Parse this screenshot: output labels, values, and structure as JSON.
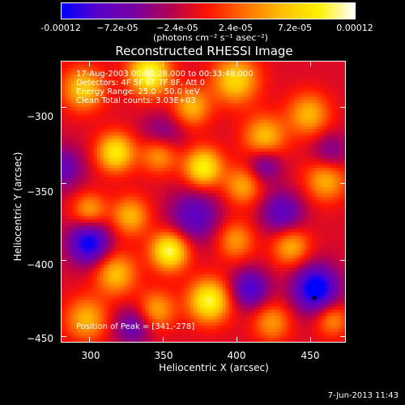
{
  "colorbar": {
    "ticks": [
      "-0.00012",
      "−7.2e-05",
      "−2.4e-05",
      "2.4e-05",
      "7.2e-05",
      "0.00012"
    ],
    "units": "(photons cm⁻² s⁻¹ asec⁻²)"
  },
  "title": "Reconstructed RHESSI Image",
  "annotations": {
    "time": "17-Aug-2003 00:00:28.000 to 00:33:48.000",
    "detectors": "Detectors: 4F 5F 6F 7F 8F, Att 0",
    "energy": "Energy Range: 25.0 - 50.0 keV",
    "clean": "Clean    Total counts: 3.03E+03",
    "peak": "Position of Peak = [341,-278]"
  },
  "footer": {
    "date": "7-Jun-2013 11:43"
  },
  "chart_data": {
    "type": "heatmap",
    "title": "Reconstructed RHESSI Image",
    "xlabel": "Heliocentric X (arcsec)",
    "ylabel": "Heliocentric Y (arcsec)",
    "xlim": [
      281,
      475
    ],
    "ylim": [
      -455,
      -270
    ],
    "x_ticks": [
      300,
      350,
      400,
      450
    ],
    "y_ticks": [
      -300,
      -350,
      -400,
      -450
    ],
    "x_tick_labels": [
      "300",
      "350",
      "400",
      "450"
    ],
    "y_tick_labels": [
      "−300",
      "−350",
      "−400",
      "−450"
    ],
    "colorbar_range": [
      -0.00012,
      0.00012
    ],
    "colormap": [
      "#0000ff",
      "#5a00c8",
      "#7800a0",
      "#b40050",
      "#ff1400",
      "#ff6e00",
      "#ffbe00",
      "#fff000",
      "#ffffff"
    ],
    "peak_position": [
      341,
      -278
    ],
    "marker": [
      454,
      -426
    ],
    "blobs": [
      {
        "x": 341,
        "y": -278,
        "v": 1.0,
        "r": 10
      },
      {
        "x": 296,
        "y": -288,
        "v": 0.7,
        "r": 10
      },
      {
        "x": 400,
        "y": -282,
        "v": 0.75,
        "r": 11
      },
      {
        "x": 370,
        "y": -300,
        "v": 0.6,
        "r": 9
      },
      {
        "x": 318,
        "y": -330,
        "v": 0.85,
        "r": 9
      },
      {
        "x": 348,
        "y": -330,
        "v": 0.7,
        "r": 9
      },
      {
        "x": 420,
        "y": -320,
        "v": 0.65,
        "r": 10
      },
      {
        "x": 450,
        "y": -305,
        "v": 0.6,
        "r": 10
      },
      {
        "x": 378,
        "y": -340,
        "v": 0.9,
        "r": 9
      },
      {
        "x": 405,
        "y": -352,
        "v": 0.55,
        "r": 9
      },
      {
        "x": 462,
        "y": -348,
        "v": 0.6,
        "r": 10
      },
      {
        "x": 328,
        "y": -372,
        "v": 0.6,
        "r": 9
      },
      {
        "x": 300,
        "y": -368,
        "v": 0.55,
        "r": 8
      },
      {
        "x": 355,
        "y": -395,
        "v": 1.0,
        "r": 9
      },
      {
        "x": 318,
        "y": -410,
        "v": 0.65,
        "r": 10
      },
      {
        "x": 400,
        "y": -388,
        "v": 0.5,
        "r": 9
      },
      {
        "x": 438,
        "y": -392,
        "v": 0.6,
        "r": 9
      },
      {
        "x": 382,
        "y": -428,
        "v": 0.95,
        "r": 10
      },
      {
        "x": 346,
        "y": -434,
        "v": 0.55,
        "r": 9
      },
      {
        "x": 298,
        "y": -440,
        "v": 0.6,
        "r": 10
      },
      {
        "x": 425,
        "y": -442,
        "v": 0.5,
        "r": 9
      },
      {
        "x": 466,
        "y": -440,
        "v": 0.5,
        "r": 8
      },
      {
        "x": 300,
        "y": -390,
        "v": -0.9,
        "r": 10
      },
      {
        "x": 350,
        "y": -320,
        "v": -0.5,
        "r": 10
      },
      {
        "x": 372,
        "y": -372,
        "v": -0.6,
        "r": 12
      },
      {
        "x": 432,
        "y": -370,
        "v": -0.6,
        "r": 10
      },
      {
        "x": 455,
        "y": -420,
        "v": -1.0,
        "r": 11
      },
      {
        "x": 410,
        "y": -420,
        "v": -0.7,
        "r": 9
      },
      {
        "x": 330,
        "y": -445,
        "v": -0.5,
        "r": 9
      },
      {
        "x": 282,
        "y": -340,
        "v": -0.5,
        "r": 10
      },
      {
        "x": 465,
        "y": -330,
        "v": -0.4,
        "r": 9
      },
      {
        "x": 420,
        "y": -338,
        "v": -0.5,
        "r": 8
      }
    ]
  }
}
